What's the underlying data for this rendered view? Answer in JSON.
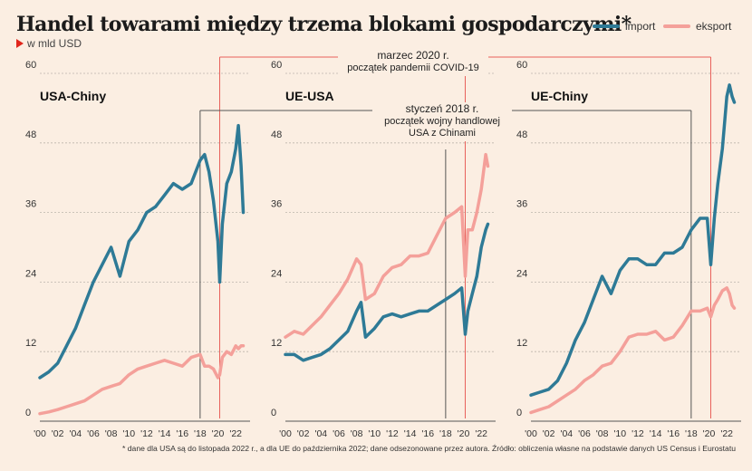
{
  "title": "Handel towarami między trzema blokami gospodarczymi*",
  "subtitle": "w mld USD",
  "legend": {
    "import": "import",
    "eksport": "eksport"
  },
  "colors": {
    "import": "#2e7a96",
    "eksport": "#f4a09a",
    "annotation": "#e8605a",
    "annotation_dark": "#555555",
    "marker": "#e1261c"
  },
  "annotations": {
    "covid_date": "marzec 2020 r.",
    "covid_text": "początek pandemii COVID-19",
    "tradewar_date": "styczeń 2018 r.",
    "tradewar_text1": "początek wojny handlowej",
    "tradewar_text2": "USA z Chinami"
  },
  "footnote": "* dane dla USA są do listopada 2022 r., a dla UE do października 2022; dane odsezonowane przez autora. Źródło: obliczenia własne na podstawie danych US Census i Eurostatu",
  "chart_data": [
    {
      "type": "line",
      "title": "USA-Chiny",
      "yticks": [
        0,
        12,
        24,
        36,
        48,
        60
      ],
      "ylim": [
        0,
        60
      ],
      "xticks": [
        "'00",
        "'02",
        "'04",
        "'06",
        "'08",
        "'10",
        "'12",
        "'14",
        "'16",
        "'18",
        "'20",
        "'22"
      ],
      "xlim": [
        2000,
        2023
      ],
      "grid": true,
      "series": [
        {
          "name": "import",
          "x": [
            2000,
            2001,
            2002,
            2003,
            2004,
            2005,
            2006,
            2007,
            2008,
            2009,
            2010,
            2011,
            2012,
            2013,
            2014,
            2015,
            2016,
            2017,
            2018,
            2018.5,
            2019,
            2019.5,
            2020.0,
            2020.2,
            2020.5,
            2021,
            2021.5,
            2022,
            2022.3,
            2022.6,
            2022.85
          ],
          "y": [
            7.5,
            8.5,
            10,
            13,
            16,
            20,
            24,
            27,
            30,
            25,
            31,
            33,
            36,
            37,
            39,
            41,
            40,
            41,
            45,
            46,
            43,
            38,
            31,
            24,
            34,
            41,
            43,
            47,
            51,
            44,
            36
          ]
        },
        {
          "name": "eksport",
          "x": [
            2000,
            2001,
            2002,
            2003,
            2004,
            2005,
            2006,
            2007,
            2008,
            2009,
            2010,
            2011,
            2012,
            2013,
            2014,
            2015,
            2016,
            2017,
            2018,
            2018.5,
            2019,
            2019.5,
            2020.0,
            2020.2,
            2020.5,
            2021,
            2021.5,
            2022,
            2022.3,
            2022.6,
            2022.85
          ],
          "y": [
            1.3,
            1.6,
            2,
            2.5,
            3,
            3.5,
            4.5,
            5.5,
            6,
            6.5,
            8,
            9,
            9.5,
            10,
            10.5,
            10,
            9.5,
            11,
            11.5,
            9.5,
            9.5,
            9,
            7.5,
            8,
            11,
            12,
            11.5,
            13,
            12.5,
            13,
            13
          ]
        }
      ]
    },
    {
      "type": "line",
      "title": "UE-USA",
      "yticks": [
        0,
        12,
        24,
        36,
        48,
        60
      ],
      "ylim": [
        0,
        60
      ],
      "xticks": [
        "'00",
        "'02",
        "'04",
        "'06",
        "'08",
        "'10",
        "'12",
        "'14",
        "'16",
        "'18",
        "'20",
        "'22"
      ],
      "xlim": [
        2000,
        2023
      ],
      "grid": true,
      "series": [
        {
          "name": "import",
          "x": [
            2000,
            2001,
            2002,
            2003,
            2004,
            2005,
            2006,
            2007,
            2008,
            2008.5,
            2009,
            2010,
            2011,
            2012,
            2013,
            2014,
            2015,
            2016,
            2017,
            2018,
            2019,
            2019.8,
            2020.2,
            2020.5,
            2021,
            2021.5,
            2022,
            2022.5,
            2022.75
          ],
          "y": [
            11.5,
            11.5,
            10.5,
            11,
            11.5,
            12.5,
            14,
            15.5,
            19,
            20.5,
            14.5,
            16,
            18,
            18.5,
            18,
            18.5,
            19,
            19,
            20,
            21,
            22,
            23,
            15,
            19,
            22,
            25,
            30,
            33,
            34
          ]
        },
        {
          "name": "eksport",
          "x": [
            2000,
            2001,
            2002,
            2003,
            2004,
            2005,
            2006,
            2007,
            2008,
            2008.5,
            2009,
            2010,
            2011,
            2012,
            2013,
            2014,
            2015,
            2016,
            2017,
            2018,
            2019,
            2019.8,
            2020.2,
            2020.5,
            2021,
            2021.5,
            2022,
            2022.5,
            2022.75
          ],
          "y": [
            14.5,
            15.5,
            15,
            16.5,
            18,
            20,
            22,
            24.5,
            28,
            27,
            21,
            22,
            25,
            26.5,
            27,
            28.5,
            28.5,
            29,
            32,
            35,
            36,
            37,
            25,
            33,
            33,
            36,
            40,
            46,
            44
          ]
        }
      ]
    },
    {
      "type": "line",
      "title": "UE-Chiny",
      "yticks": [
        0,
        12,
        24,
        36,
        48,
        60
      ],
      "ylim": [
        0,
        60
      ],
      "xticks": [
        "'00",
        "'02",
        "'04",
        "'06",
        "'08",
        "'10",
        "'12",
        "'14",
        "'16",
        "'18",
        "'20",
        "'22"
      ],
      "xlim": [
        2000,
        2023
      ],
      "grid": true,
      "series": [
        {
          "name": "import",
          "x": [
            2000,
            2001,
            2002,
            2003,
            2004,
            2005,
            2006,
            2007,
            2008,
            2009,
            2010,
            2011,
            2012,
            2013,
            2014,
            2015,
            2016,
            2017,
            2018,
            2019,
            2019.8,
            2020.2,
            2020.6,
            2021,
            2021.5,
            2022,
            2022.3,
            2022.6,
            2022.85
          ],
          "y": [
            4.5,
            5,
            5.5,
            7,
            10,
            14,
            17,
            21,
            25,
            22,
            26,
            28,
            28,
            27,
            27,
            29,
            29,
            30,
            33,
            35,
            35,
            27,
            35,
            41,
            47,
            56,
            58,
            56,
            55
          ]
        },
        {
          "name": "eksport",
          "x": [
            2000,
            2001,
            2002,
            2003,
            2004,
            2005,
            2006,
            2007,
            2008,
            2009,
            2010,
            2011,
            2012,
            2013,
            2014,
            2015,
            2016,
            2017,
            2018,
            2019,
            2019.8,
            2020.2,
            2020.6,
            2021,
            2021.5,
            2022,
            2022.3,
            2022.6,
            2022.85
          ],
          "y": [
            1.5,
            2,
            2.5,
            3.5,
            4.5,
            5.5,
            7,
            8,
            9.5,
            10,
            12,
            14.5,
            15,
            15,
            15.5,
            14,
            14.5,
            16.5,
            19,
            19,
            19.5,
            18,
            20,
            21,
            22.5,
            23,
            22,
            20,
            19.5
          ]
        }
      ]
    }
  ]
}
